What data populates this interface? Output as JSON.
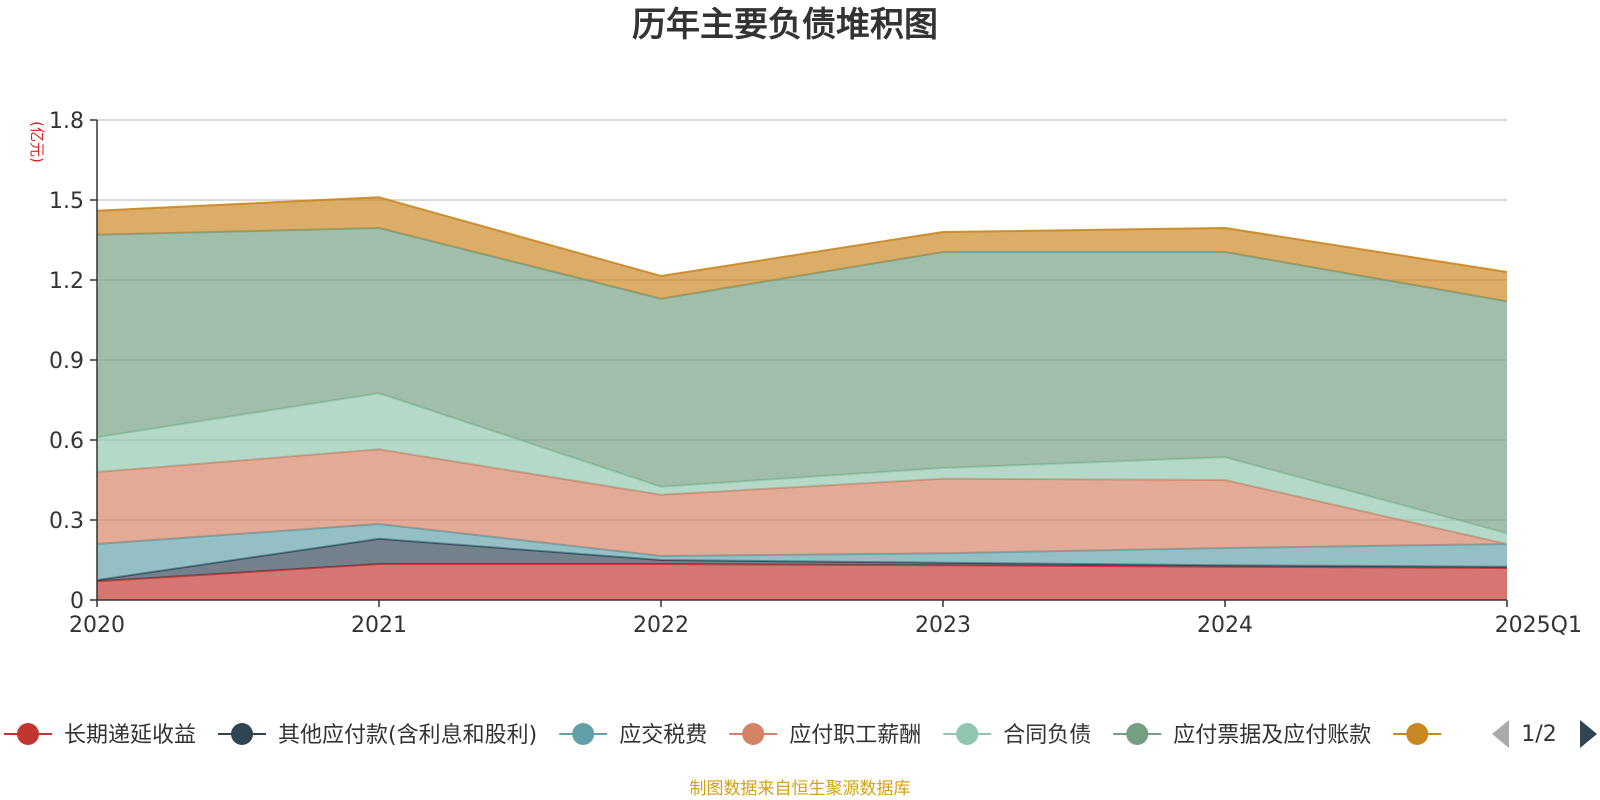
{
  "chart_data": {
    "type": "area",
    "stacked": true,
    "title": "历年主要负债堆积图",
    "ylabel": "(亿元)",
    "ylim": [
      0,
      1.8
    ],
    "y_ticks": [
      "0",
      "0.3",
      "0.6",
      "0.9",
      "1.2",
      "1.5",
      "1.8"
    ],
    "categories": [
      "2020",
      "2021",
      "2022",
      "2023",
      "2024",
      "2025Q1"
    ],
    "grid": true,
    "legend_position": "bottom",
    "series": [
      {
        "name": "长期递延收益",
        "color": "#c23531",
        "values": [
          0.07,
          0.135,
          0.135,
          0.13,
          0.125,
          0.12
        ]
      },
      {
        "name": "其他应付款(含利息和股利)",
        "color": "#2f4554",
        "values": [
          0.005,
          0.095,
          0.015,
          0.01,
          0.005,
          0.005
        ]
      },
      {
        "name": "应交税费",
        "color": "#61a0a8",
        "values": [
          0.135,
          0.055,
          0.015,
          0.035,
          0.065,
          0.085
        ]
      },
      {
        "name": "应付职工薪酬",
        "color": "#d48265",
        "values": [
          0.27,
          0.28,
          0.23,
          0.28,
          0.255,
          0.0
        ]
      },
      {
        "name": "合同负债",
        "color": "#91c7ae",
        "values": [
          0.13,
          0.21,
          0.03,
          0.04,
          0.085,
          0.04
        ]
      },
      {
        "name": "应付票据及应付账款",
        "color": "#749f83",
        "values": [
          0.76,
          0.62,
          0.705,
          0.81,
          0.77,
          0.87
        ]
      },
      {
        "name": "",
        "color": "#ca8622",
        "values": [
          0.09,
          0.115,
          0.085,
          0.075,
          0.09,
          0.11
        ]
      }
    ]
  },
  "legend": {
    "page": "1/2"
  },
  "footer": {
    "source": "制图数据来自恒生聚源数据库"
  }
}
